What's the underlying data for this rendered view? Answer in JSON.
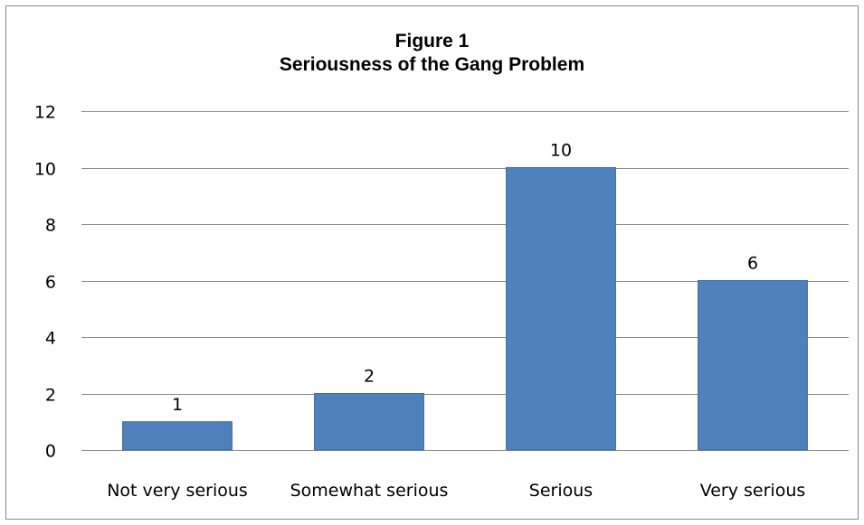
{
  "chart_data": {
    "type": "bar",
    "title": "Figure 1",
    "subtitle": "Seriousness of the Gang Problem",
    "categories": [
      "Not very serious",
      "Somewhat serious",
      "Serious",
      "Very serious"
    ],
    "values": [
      1,
      2,
      10,
      6
    ],
    "data_labels": [
      "1",
      "2",
      "10",
      "6"
    ],
    "ylim": [
      0,
      12
    ],
    "yticks": [
      0,
      2,
      4,
      6,
      8,
      10,
      12
    ],
    "grid": true,
    "legend": "none",
    "bar_color": "#4F81BD",
    "bar_edge_color": "#3A6A9E",
    "grid_color": "#8C8C8C"
  }
}
